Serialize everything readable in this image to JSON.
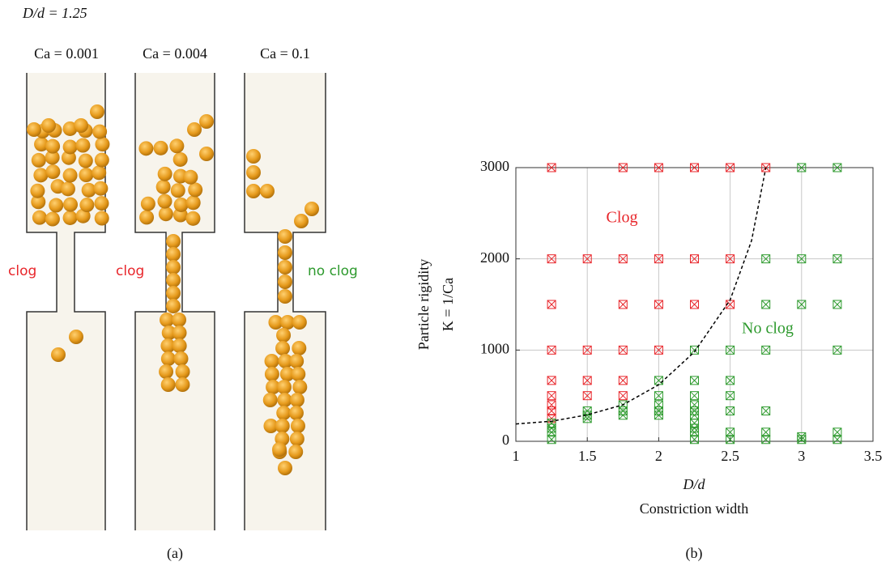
{
  "panel_a": {
    "title": "D/d = 1.25",
    "ca_labels": [
      "Ca = 0.001",
      "Ca = 0.004",
      "Ca = 0.1"
    ],
    "outcomes": [
      "clog",
      "clog",
      "no clog"
    ],
    "caption": "(a)"
  },
  "chart_data": {
    "type": "scatter",
    "caption": "(b)",
    "xlabel": "D/d",
    "xlabel2": "Constriction width",
    "ylabel": "Particle rigidity",
    "ylabel2": "K = 1/Ca",
    "xlim": [
      1,
      3.5
    ],
    "xticks": [
      1,
      1.5,
      2,
      2.5,
      3,
      3.5
    ],
    "ylim": [
      0,
      3000
    ],
    "yticks": [
      0,
      1000,
      2000,
      3000
    ],
    "grid": true,
    "series": [
      {
        "name": "Clog",
        "color": "#e8262b",
        "x": [
          1.25,
          1.25,
          1.25,
          1.25,
          1.25,
          1.25,
          1.25,
          1.25,
          1.25,
          1.5,
          1.5,
          1.5,
          1.5,
          1.75,
          1.75,
          1.75,
          1.75,
          1.75,
          1.75,
          2,
          2,
          2,
          2,
          2.25,
          2.25,
          2.25,
          2.5,
          2.5,
          2.5,
          2.75
        ],
        "values": [
          3000,
          2000,
          1500,
          1000,
          667,
          500,
          400,
          333,
          250,
          2000,
          1000,
          667,
          500,
          3000,
          2000,
          1500,
          1000,
          667,
          500,
          3000,
          2000,
          1500,
          1000,
          3000,
          2000,
          1500,
          3000,
          2000,
          1500,
          3000
        ]
      },
      {
        "name": "No clog",
        "color": "#2e9a2e",
        "x": [
          1.25,
          1.25,
          1.25,
          1.25,
          1.5,
          1.5,
          1.5,
          1.75,
          1.75,
          1.75,
          2,
          2,
          2,
          2,
          2,
          2.25,
          2.25,
          2.25,
          2.25,
          2.25,
          2.25,
          2.25,
          2.25,
          2.25,
          2.25,
          2.5,
          2.5,
          2.5,
          2.5,
          2.5,
          2.5,
          2.75,
          2.75,
          2.75,
          2.75,
          2.75,
          2.75,
          3,
          3,
          3,
          3,
          3,
          3.25,
          3.25,
          3.25,
          3.25,
          3.25,
          3.25
        ],
        "values": [
          200,
          143,
          100,
          20,
          333,
          286,
          250,
          400,
          333,
          286,
          667,
          500,
          400,
          333,
          286,
          1000,
          667,
          500,
          400,
          333,
          286,
          200,
          143,
          100,
          20,
          1000,
          667,
          500,
          333,
          100,
          20,
          2000,
          1500,
          1000,
          333,
          100,
          20,
          3000,
          2000,
          1500,
          50,
          20,
          3000,
          2000,
          1500,
          1000,
          100,
          20
        ]
      }
    ],
    "curve": {
      "color": "#000000",
      "x": [
        1,
        1.25,
        1.5,
        1.75,
        2,
        2.25,
        2.5,
        2.65,
        2.75
      ],
      "values": [
        190,
        220,
        290,
        400,
        620,
        980,
        1550,
        2200,
        3000
      ]
    }
  }
}
